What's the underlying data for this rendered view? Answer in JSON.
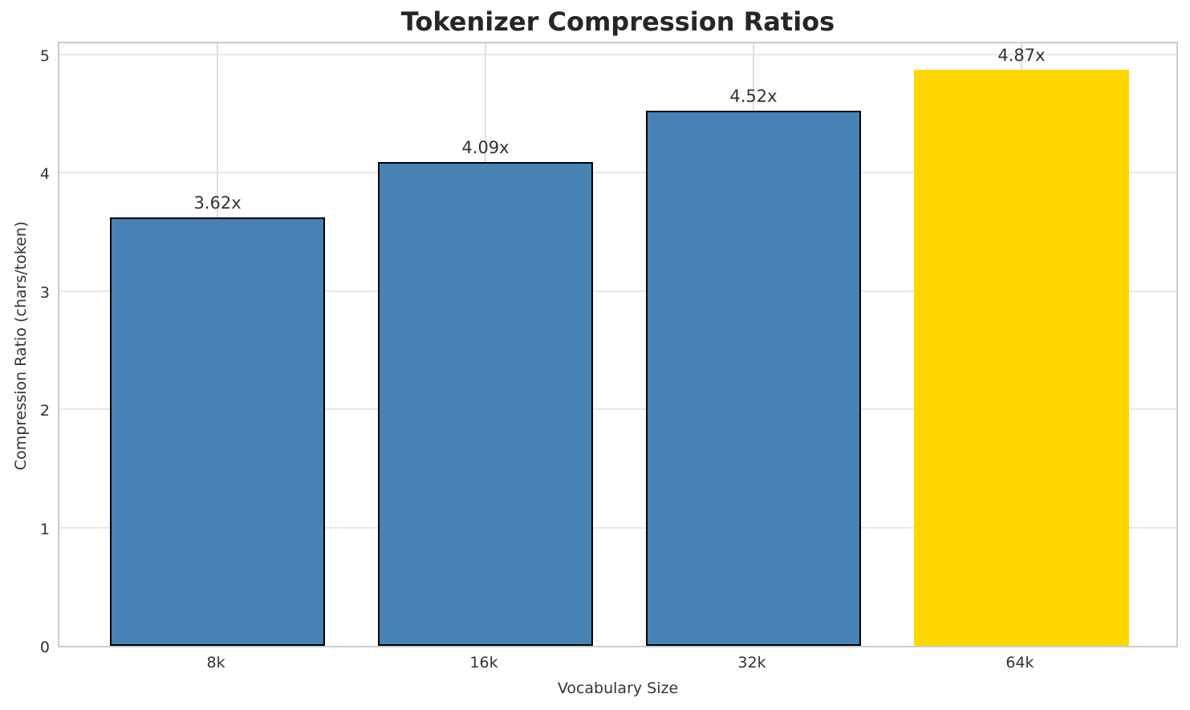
{
  "chart_data": {
    "type": "bar",
    "title": "Tokenizer Compression Ratios",
    "xlabel": "Vocabulary Size",
    "ylabel": "Compression Ratio (chars/token)",
    "categories": [
      "8k",
      "16k",
      "32k",
      "64k"
    ],
    "values": [
      3.62,
      4.09,
      4.52,
      4.87
    ],
    "bar_labels": [
      "3.62x",
      "4.09x",
      "4.52x",
      "4.87x"
    ],
    "bar_colors": [
      "#4682B4",
      "#4682B4",
      "#4682B4",
      "#FFD700"
    ],
    "bar_edge_colors": [
      "#000000",
      "#000000",
      "#000000",
      "none"
    ],
    "highlight_index": 3,
    "yticks": [
      "0",
      "1",
      "2",
      "3",
      "4",
      "5"
    ],
    "ylim": [
      0,
      5.12
    ],
    "grid": "both",
    "legend": "none"
  },
  "style": {
    "grid_color_h": "#e7e7e7",
    "grid_color_v": "#dedede",
    "spine_color": "#cccccc",
    "title_color": "#262626",
    "tick_color": "#333333",
    "background": "#ffffff"
  }
}
